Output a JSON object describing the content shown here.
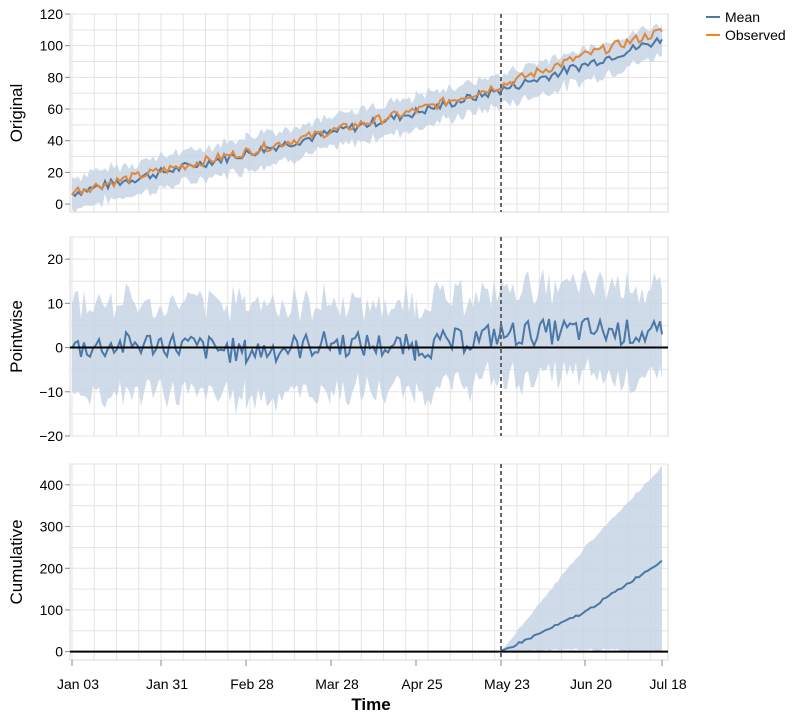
{
  "chart_data": {
    "type": "line",
    "xlabel": "Time",
    "x_ticks": [
      "Jan 03",
      "Jan 31",
      "Feb 28",
      "Mar 28",
      "Apr 25",
      "May 23",
      "Jun 20",
      "Jul 18"
    ],
    "intervention_marker": "May 23",
    "legend": {
      "placement": "top-right",
      "items": [
        {
          "label": "Mean",
          "color": "#4c78a8"
        },
        {
          "label": "Observed",
          "color": "#f58518"
        }
      ]
    },
    "colors": {
      "mean": "#4c78a8",
      "observed": "#e0883c",
      "band": "#c7d5e4",
      "zero_line": "#000000",
      "grid": "#e3e3e3"
    },
    "panels": [
      {
        "name": "original",
        "ylabel": "Original",
        "ylim": [
          -5,
          120
        ],
        "yticks": [
          0,
          20,
          40,
          60,
          80,
          100,
          120
        ],
        "series": [
          {
            "name": "Mean",
            "x": [
              "Jan 03",
              "Jan 31",
              "Feb 28",
              "Mar 28",
              "Apr 25",
              "May 23",
              "Jun 20",
              "Jul 18"
            ],
            "values": [
              7,
              20,
              32,
              45,
              58,
              72,
              88,
              104
            ],
            "band": [
              [
                -3,
                17
              ],
              [
                10,
                30
              ],
              [
                22,
                42
              ],
              [
                35,
                55
              ],
              [
                48,
                68
              ],
              [
                62,
                82
              ],
              [
                78,
                98
              ],
              [
                94,
                114
              ]
            ]
          },
          {
            "name": "Observed",
            "x": [
              "Jan 03",
              "Jan 31",
              "Feb 28",
              "Mar 28",
              "Apr 25",
              "May 23",
              "Jun 20",
              "Jul 18"
            ],
            "values": [
              8,
              21,
              33,
              46,
              59,
              75,
              94,
              109
            ]
          }
        ]
      },
      {
        "name": "pointwise",
        "ylabel": "Pointwise",
        "ylim": [
          -20,
          25
        ],
        "yticks": [
          -20,
          -10,
          0,
          10,
          20
        ],
        "yticklabels": [
          "−20",
          "−10",
          "0",
          "10",
          "20"
        ],
        "zero_line": true,
        "series": [
          {
            "name": "Mean",
            "x": [
              "Jan 03",
              "Jan 31",
              "Feb 28",
              "Mar 28",
              "Apr 25",
              "May 23",
              "Jun 20",
              "Jul 18"
            ],
            "values": [
              0,
              1,
              -1,
              1,
              0,
              3,
              4,
              3
            ],
            "band": [
              [
                -10,
                10
              ],
              [
                -10,
                10
              ],
              [
                -11,
                10
              ],
              [
                -10,
                10
              ],
              [
                -10,
                10
              ],
              [
                -7,
                13
              ],
              [
                -6,
                14
              ],
              [
                -7,
                13
              ]
            ]
          }
        ]
      },
      {
        "name": "cumulative",
        "ylabel": "Cumulative",
        "ylim": [
          -20,
          450
        ],
        "yticks": [
          0,
          100,
          200,
          300,
          400
        ],
        "zero_line": true,
        "series": [
          {
            "name": "Mean",
            "x": [
              "May 23",
              "Jun 20",
              "Jul 18"
            ],
            "values": [
              0,
              95,
              218
            ],
            "band": [
              [
                0,
                0
              ],
              [
                5,
                250
              ],
              [
                0,
                445
              ]
            ]
          }
        ]
      }
    ]
  }
}
